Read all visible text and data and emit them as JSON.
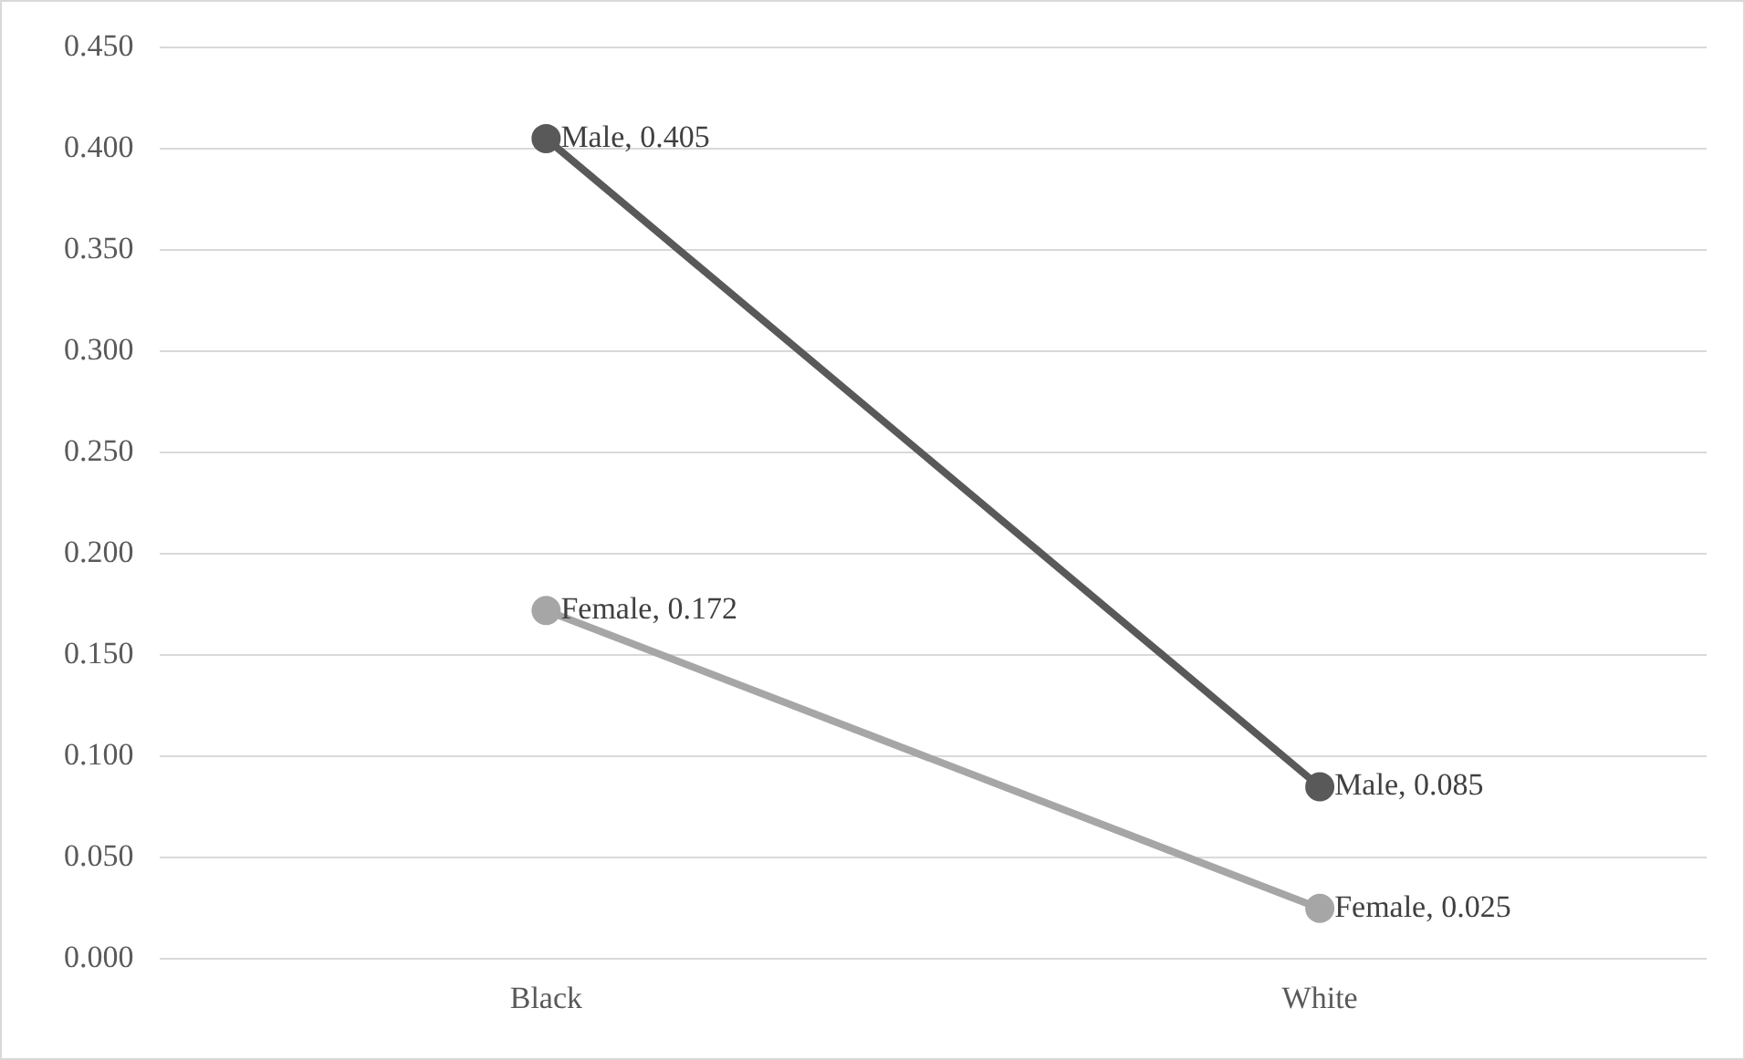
{
  "chart_data": {
    "type": "line",
    "categories": [
      "Black",
      "White"
    ],
    "series": [
      {
        "color": "#595959",
        "values": [
          0.405,
          0.085
        ],
        "value_labels": [
          "Male, 0.405",
          "Male, 0.085"
        ]
      },
      {
        "color": "#a6a6a6",
        "values": [
          0.172,
          0.025
        ],
        "value_labels": [
          "Female, 0.172",
          "Female, 0.025"
        ]
      }
    ],
    "ylim": [
      0,
      0.45
    ],
    "yticks": [
      {
        "value": 0,
        "label": "0.000"
      },
      {
        "value": 0.05,
        "label": "0.050"
      },
      {
        "value": 0.1,
        "label": "0.100"
      },
      {
        "value": 0.15,
        "label": "0.150"
      },
      {
        "value": 0.2,
        "label": "0.200"
      },
      {
        "value": 0.25,
        "label": "0.250"
      },
      {
        "value": 0.3,
        "label": "0.300"
      },
      {
        "value": 0.35,
        "label": "0.350"
      },
      {
        "value": 0.4,
        "label": "0.400"
      },
      {
        "value": 0.45,
        "label": "0.450"
      }
    ],
    "grid": "y",
    "legend": false,
    "marker": "circle",
    "line_style": "solid"
  }
}
